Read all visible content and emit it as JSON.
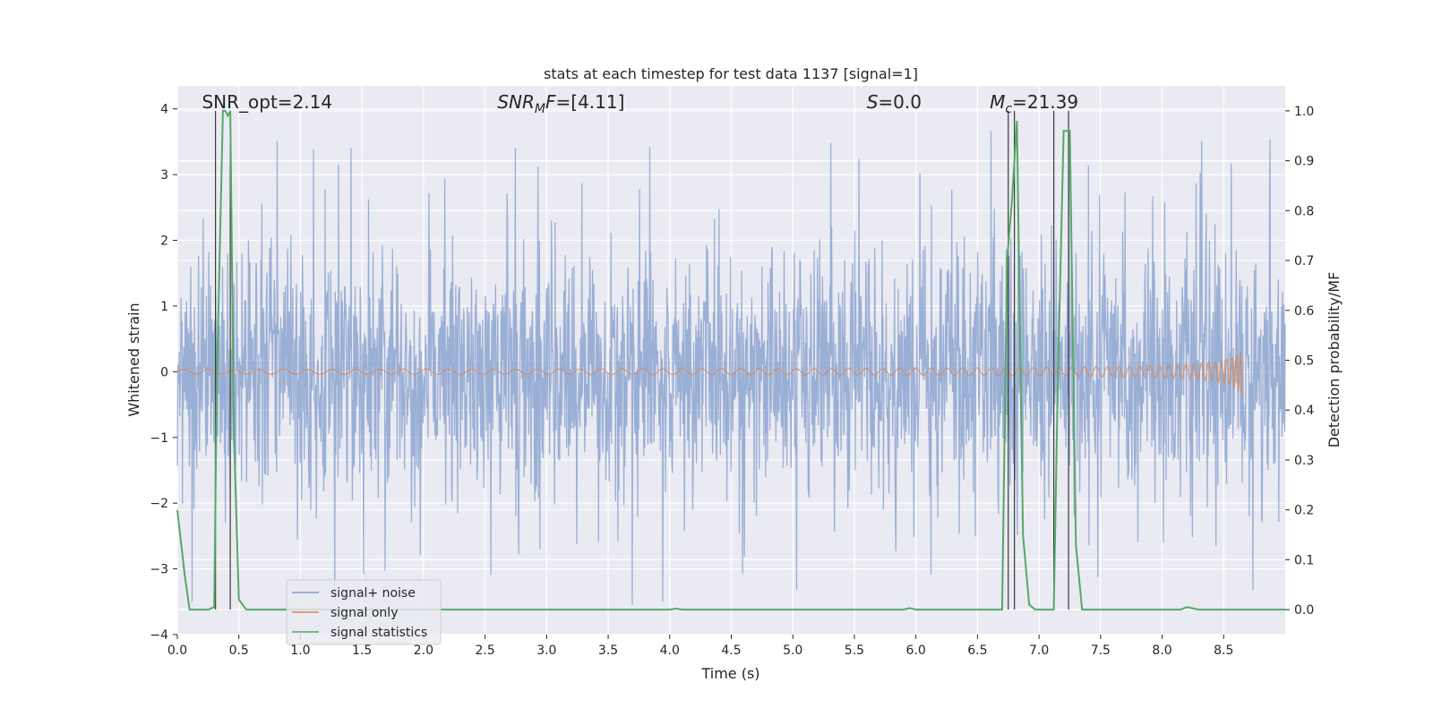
{
  "chart_data": {
    "type": "line",
    "title": "stats at each timestep for test data 1137 [signal=1]",
    "xlabel": "Time (s)",
    "ylabel": "Whitened strain",
    "y2label": "Detection probability/MF",
    "xlim": [
      0.0,
      9.0
    ],
    "ylim": [
      -4.0,
      4.35
    ],
    "y2lim": [
      -0.05,
      1.05
    ],
    "xticks": [
      "0.0",
      "0.5",
      "1.0",
      "1.5",
      "2.0",
      "2.5",
      "3.0",
      "3.5",
      "4.0",
      "4.5",
      "5.0",
      "5.5",
      "6.0",
      "6.5",
      "7.0",
      "7.5",
      "8.0",
      "8.5"
    ],
    "yticks": [
      "4",
      "3",
      "2",
      "1",
      "0",
      "−1",
      "−2",
      "−3",
      "−4"
    ],
    "y2ticks": [
      "1.0",
      "0.9",
      "0.8",
      "0.7",
      "0.6",
      "0.5",
      "0.4",
      "0.3",
      "0.2",
      "0.1",
      "0.0"
    ],
    "grid": true,
    "legend_position": "lower-left",
    "annotations": [
      {
        "text": "SNR_opt=2.14",
        "x": 0.2
      },
      {
        "text": "SNR",
        "sub": "M",
        "rest": "F=[4.11]",
        "x": 2.6
      },
      {
        "text": "S",
        "sub": "",
        "rest": "=0.0",
        "x": 5.6
      },
      {
        "text": "M",
        "sub": "c",
        "rest": "=21.39",
        "x": 6.6
      }
    ],
    "vlines_x": [
      0.31,
      0.43,
      6.75,
      6.8,
      7.12,
      7.24
    ],
    "series": [
      {
        "name": "signal+ noise",
        "color": "#7f9bcb",
        "description": "whitened noisy strain, roughly Gaussian noise with spikes up to about 4 and down to about -3.6"
      },
      {
        "name": "signal only",
        "color": "#dd8452",
        "description": "chirp signal near zero, growing amplitude toward 8.65 s (peak about 0.4)"
      },
      {
        "name": "signal statistics",
        "color": "#55a868",
        "axis": "right",
        "x": [
          0.0,
          0.06,
          0.1,
          0.2,
          0.25,
          0.3,
          0.32,
          0.37,
          0.39,
          0.41,
          0.43,
          0.46,
          0.5,
          0.56,
          1.0,
          2.0,
          3.0,
          4.0,
          4.05,
          4.1,
          5.0,
          5.9,
          5.95,
          6.0,
          6.5,
          6.7,
          6.74,
          6.78,
          6.82,
          6.87,
          6.92,
          6.97,
          7.05,
          7.12,
          7.15,
          7.2,
          7.25,
          7.3,
          7.35,
          7.5,
          8.0,
          8.15,
          8.2,
          8.3,
          8.5,
          9.0
        ],
        "y": [
          0.2,
          0.07,
          0.0,
          0.0,
          0.0,
          0.005,
          0.45,
          1.0,
          1.0,
          0.99,
          1.0,
          0.35,
          0.02,
          0.0,
          0.0,
          0.0,
          0.0,
          0.0,
          0.002,
          0.0,
          0.0,
          0.0,
          0.003,
          0.0,
          0.0,
          0.0,
          0.7,
          0.82,
          0.98,
          0.15,
          0.01,
          0.0,
          0.0,
          0.0,
          0.42,
          0.96,
          0.96,
          0.13,
          0.0,
          0.0,
          0.0,
          0.0,
          0.005,
          0.0,
          0.0,
          0.0
        ]
      }
    ]
  }
}
